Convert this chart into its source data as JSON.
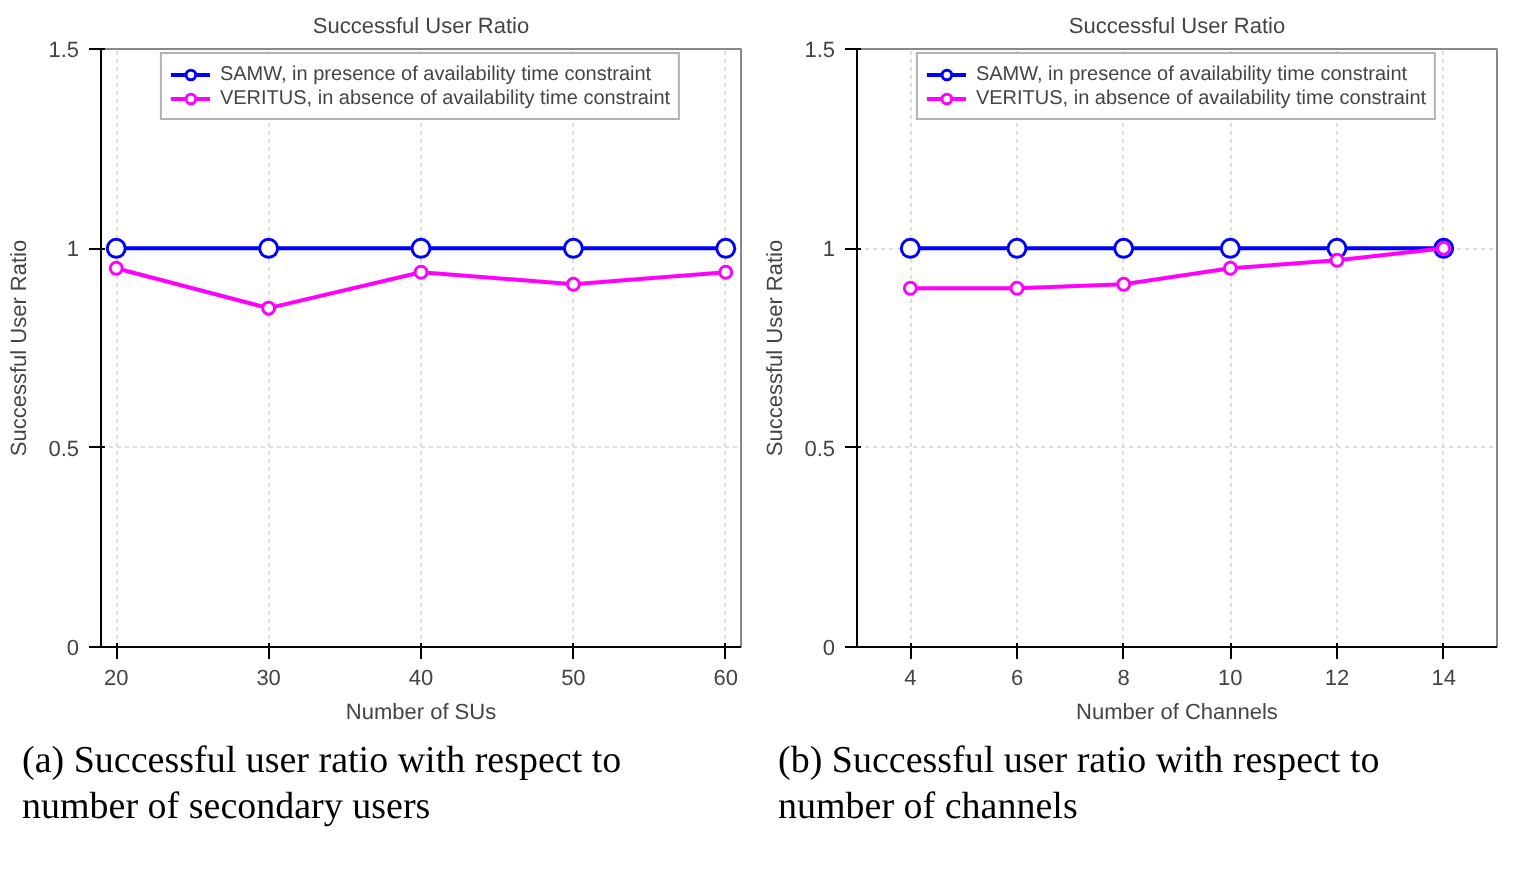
{
  "chart_data": [
    {
      "type": "line",
      "title": "Successful User Ratio",
      "xlabel": "Number of SUs",
      "ylabel": "Successful User Ratio",
      "x": [
        20,
        30,
        40,
        50,
        60
      ],
      "series": [
        {
          "name": "SAMW, in presence of availability time constraint",
          "color": "#0000ff",
          "values": [
            1,
            1,
            1,
            1,
            1
          ]
        },
        {
          "name": "VERITUS, in absence of availability time constraint",
          "color": "#ff00ff",
          "values": [
            0.95,
            0.85,
            0.94,
            0.91,
            0.94
          ]
        }
      ],
      "xlim": [
        19,
        61
      ],
      "xticks": [
        20,
        30,
        40,
        50,
        60
      ],
      "ylim": [
        0,
        1.5
      ],
      "yticks": [
        0,
        0.5,
        1,
        1.5
      ],
      "grid": true,
      "legend": "top",
      "marker": "circle",
      "annotations": [
        "(a) Successful user ratio with respect to number of secondary users"
      ]
    },
    {
      "type": "line",
      "title": "Successful User Ratio",
      "xlabel": "Number of Channels",
      "ylabel": "Successful User Ratio",
      "x": [
        4,
        6,
        8,
        10,
        12,
        14
      ],
      "series": [
        {
          "name": "SAMW, in presence of availability time constraint",
          "color": "#0000ff",
          "values": [
            1,
            1,
            1,
            1,
            1,
            1
          ]
        },
        {
          "name": "VERITUS, in absence of availability time constraint",
          "color": "#ff00ff",
          "values": [
            0.9,
            0.9,
            0.91,
            0.95,
            0.97,
            1
          ]
        }
      ],
      "xlim": [
        3,
        15
      ],
      "xticks": [
        4,
        6,
        8,
        10,
        12,
        14
      ],
      "ylim": [
        0,
        1.5
      ],
      "yticks": [
        0,
        0.5,
        1,
        1.5
      ],
      "grid": true,
      "legend": "top",
      "marker": "circle",
      "annotations": [
        "(b) Successful user ratio with respect to number of channels"
      ]
    }
  ]
}
